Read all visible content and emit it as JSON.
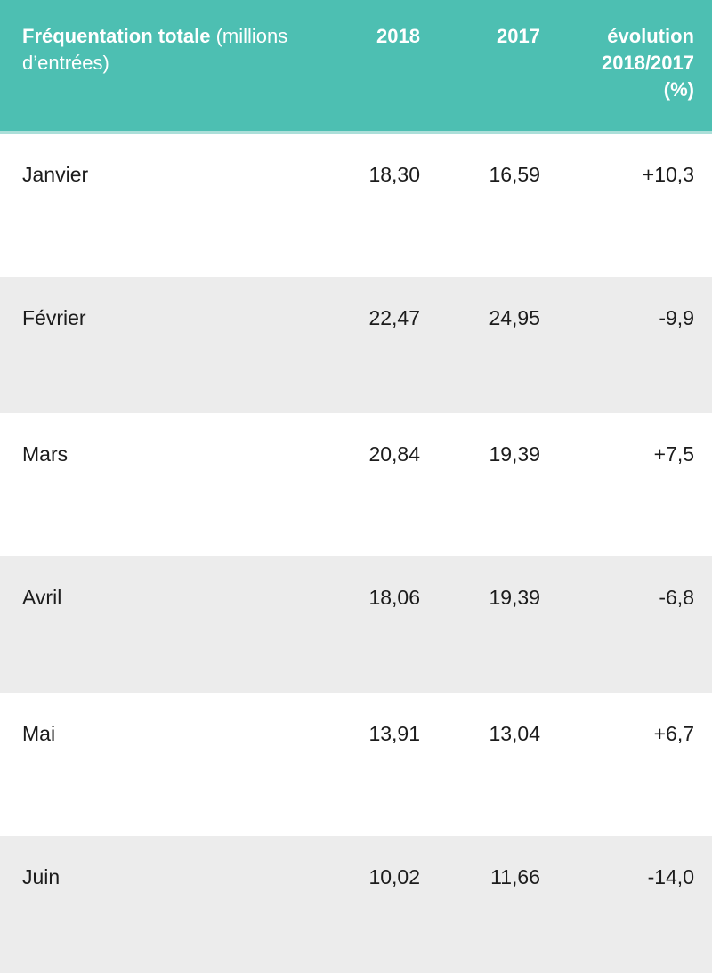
{
  "colors": {
    "header_bg": "#4DBFB2",
    "header_separator": "#ACDFD9",
    "header_text": "#FFFFFF",
    "row_alt_bg": "#ECECEC",
    "text": "#1C1C1C"
  },
  "table": {
    "header": {
      "title_bold": "Fréquentation totale",
      "title_normal": " (millions d’entrées)",
      "col_2018": "2018",
      "col_2017": "2017",
      "evolution_line1": "évolution",
      "evolution_line2": "2018/2017",
      "evolution_line3": "(%)"
    },
    "rows": [
      {
        "month": "Janvier",
        "y2018": "18,30",
        "y2017": "16,59",
        "evolution": "+10,3"
      },
      {
        "month": "Février",
        "y2018": "22,47",
        "y2017": "24,95",
        "evolution": "-9,9"
      },
      {
        "month": "Mars",
        "y2018": "20,84",
        "y2017": "19,39",
        "evolution": "+7,5"
      },
      {
        "month": "Avril",
        "y2018": "18,06",
        "y2017": "19,39",
        "evolution": "-6,8"
      },
      {
        "month": "Mai",
        "y2018": "13,91",
        "y2017": "13,04",
        "evolution": "+6,7"
      },
      {
        "month": "Juin",
        "y2018": "10,02",
        "y2017": "11,66",
        "evolution": "-14,0"
      }
    ]
  },
  "chart_data": {
    "type": "table",
    "title": "Fréquentation totale (millions d’entrées)",
    "columns": [
      "Fréquentation totale (millions d’entrées)",
      "2018",
      "2017",
      "évolution 2018/2017 (%)"
    ],
    "rows": [
      [
        "Janvier",
        "18,30",
        "16,59",
        "+10,3"
      ],
      [
        "Février",
        "22,47",
        "24,95",
        "-9,9"
      ],
      [
        "Mars",
        "20,84",
        "19,39",
        "+7,5"
      ],
      [
        "Avril",
        "18,06",
        "19,39",
        "-6,8"
      ],
      [
        "Mai",
        "13,91",
        "13,04",
        "+6,7"
      ],
      [
        "Juin",
        "10,02",
        "11,66",
        "-14,0"
      ]
    ]
  }
}
